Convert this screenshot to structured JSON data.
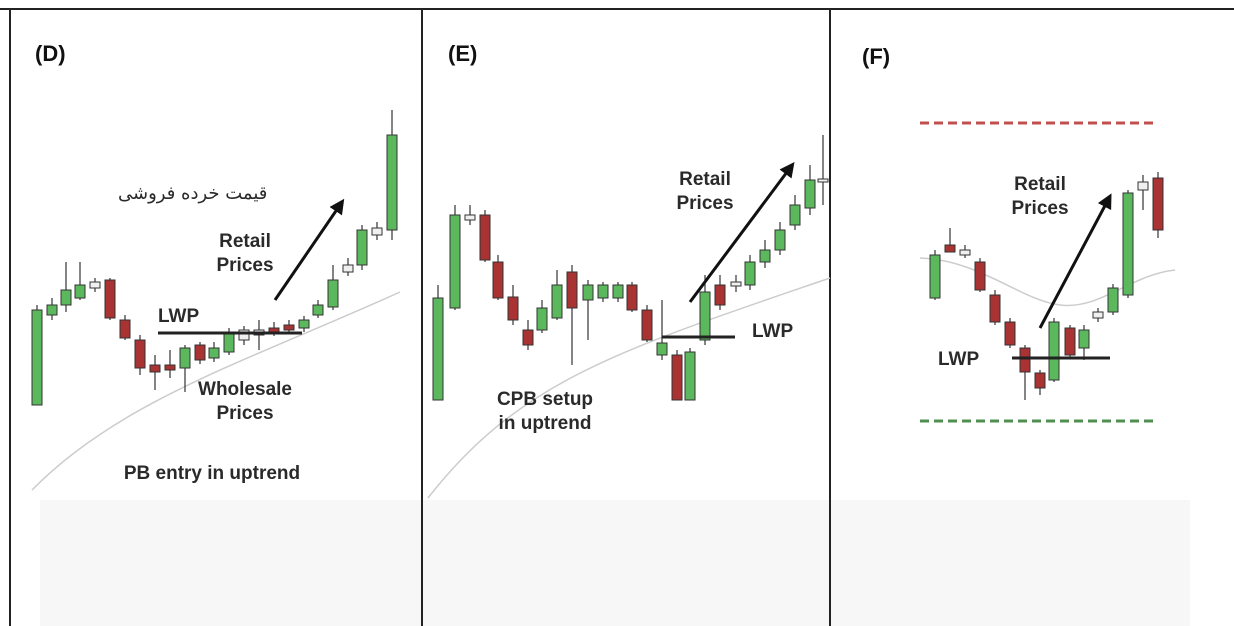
{
  "panels": [
    {
      "label": "(D)",
      "texts": [
        "قیمت خرده فروشی",
        "Retail\nPrices",
        "LWP",
        "Wholesale\nPrices",
        "PB entry in uptrend"
      ]
    },
    {
      "label": "(E)",
      "texts": [
        "Retail\nPrices",
        "LWP",
        "CPB setup\nin uptrend"
      ]
    },
    {
      "label": "(F)",
      "texts": [
        "Retail\nPrices",
        "LWP"
      ]
    }
  ]
}
